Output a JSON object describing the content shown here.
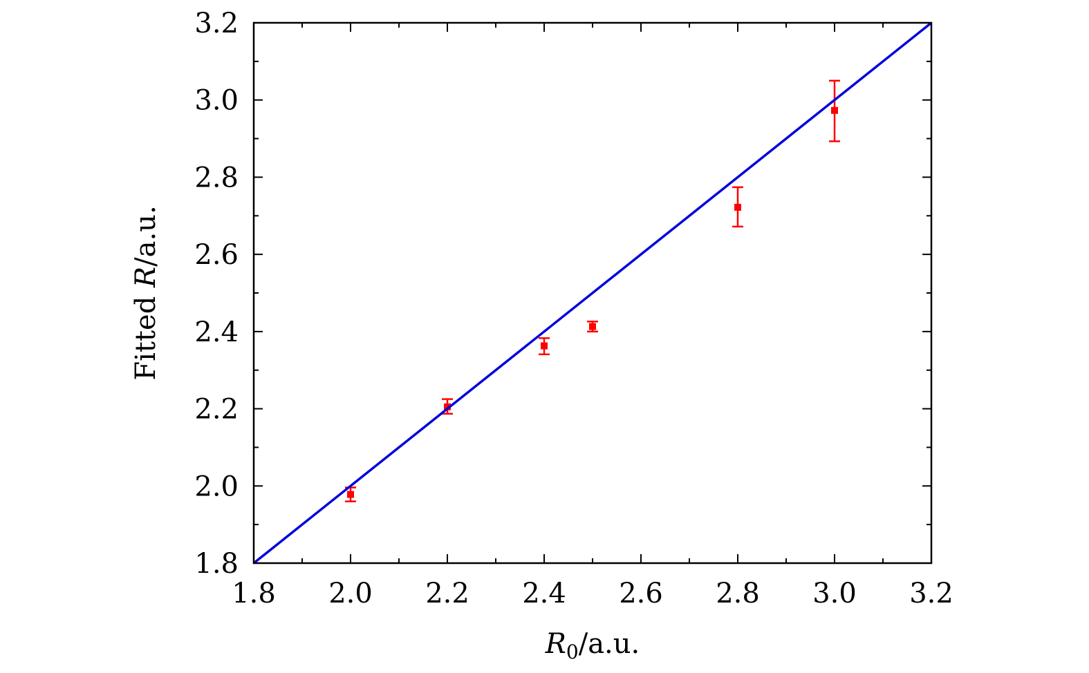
{
  "chart_data": {
    "type": "scatter",
    "title": "",
    "xlabel": {
      "var": "R",
      "sub": "0",
      "unit": "/a.u."
    },
    "ylabel": {
      "prefix": "Fitted ",
      "var": "R",
      "unit": "/a.u."
    },
    "xlim": [
      1.8,
      3.2
    ],
    "ylim": [
      1.8,
      3.2
    ],
    "x_ticks": [
      "1.8",
      "2.0",
      "2.2",
      "2.4",
      "2.6",
      "2.8",
      "3.0",
      "3.2"
    ],
    "y_ticks": [
      "1.8",
      "2.0",
      "2.2",
      "2.4",
      "2.6",
      "2.8",
      "3.0",
      "3.2"
    ],
    "grid": false,
    "series": [
      {
        "kind": "points-with-error",
        "color": "#ff0000",
        "points": [
          {
            "x": 2.0,
            "y": 1.978,
            "err_low": 0.018,
            "err_high": 0.018
          },
          {
            "x": 2.2,
            "y": 2.205,
            "err_low": 0.018,
            "err_high": 0.02
          },
          {
            "x": 2.4,
            "y": 2.363,
            "err_low": 0.022,
            "err_high": 0.02
          },
          {
            "x": 2.5,
            "y": 2.413,
            "err_low": 0.013,
            "err_high": 0.013
          },
          {
            "x": 2.8,
            "y": 2.722,
            "err_low": 0.05,
            "err_high": 0.052
          },
          {
            "x": 3.0,
            "y": 2.973,
            "err_low": 0.08,
            "err_high": 0.077
          }
        ]
      },
      {
        "kind": "line",
        "color": "#0000dd",
        "x": [
          1.8,
          3.2
        ],
        "y": [
          1.8,
          3.2
        ]
      }
    ]
  }
}
